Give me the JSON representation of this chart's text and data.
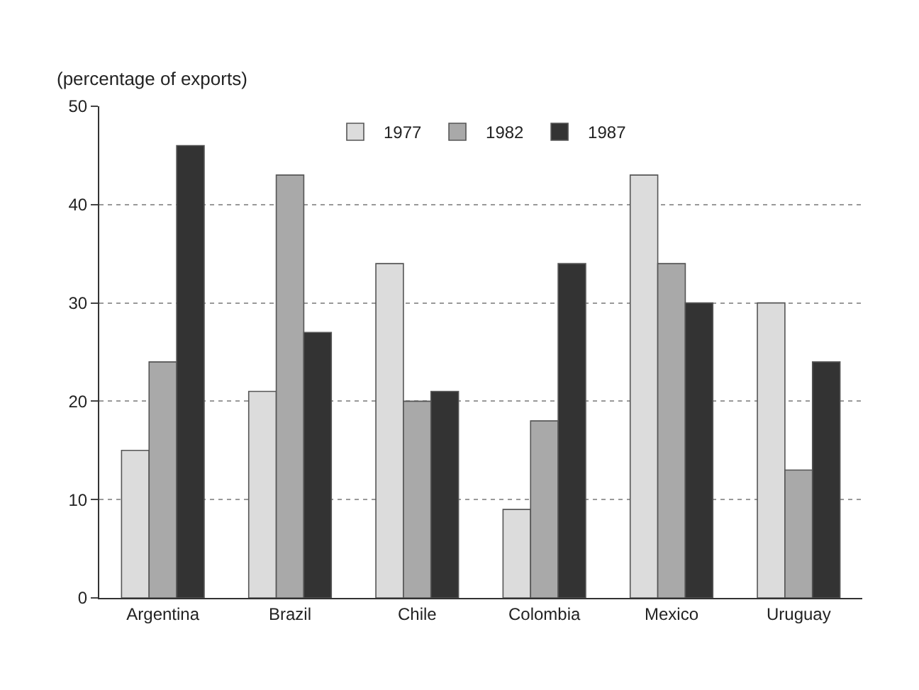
{
  "chart_data": {
    "type": "bar",
    "ylabel": "(percentage of exports)",
    "categories": [
      "Argentina",
      "Brazil",
      "Chile",
      "Colombia",
      "Mexico",
      "Uruguay"
    ],
    "series": [
      {
        "name": "1977",
        "color": "#dcdcdc",
        "values": [
          15,
          21,
          34,
          9,
          43,
          30
        ]
      },
      {
        "name": "1982",
        "color": "#a9a9a9",
        "values": [
          24,
          43,
          20,
          18,
          34,
          13
        ]
      },
      {
        "name": "1987",
        "color": "#333333",
        "values": [
          46,
          27,
          21,
          34,
          30,
          24
        ]
      }
    ],
    "ylim": [
      0,
      50
    ],
    "yticks": [
      0,
      10,
      20,
      30,
      40,
      50
    ],
    "grid": "y",
    "legend": "top"
  }
}
